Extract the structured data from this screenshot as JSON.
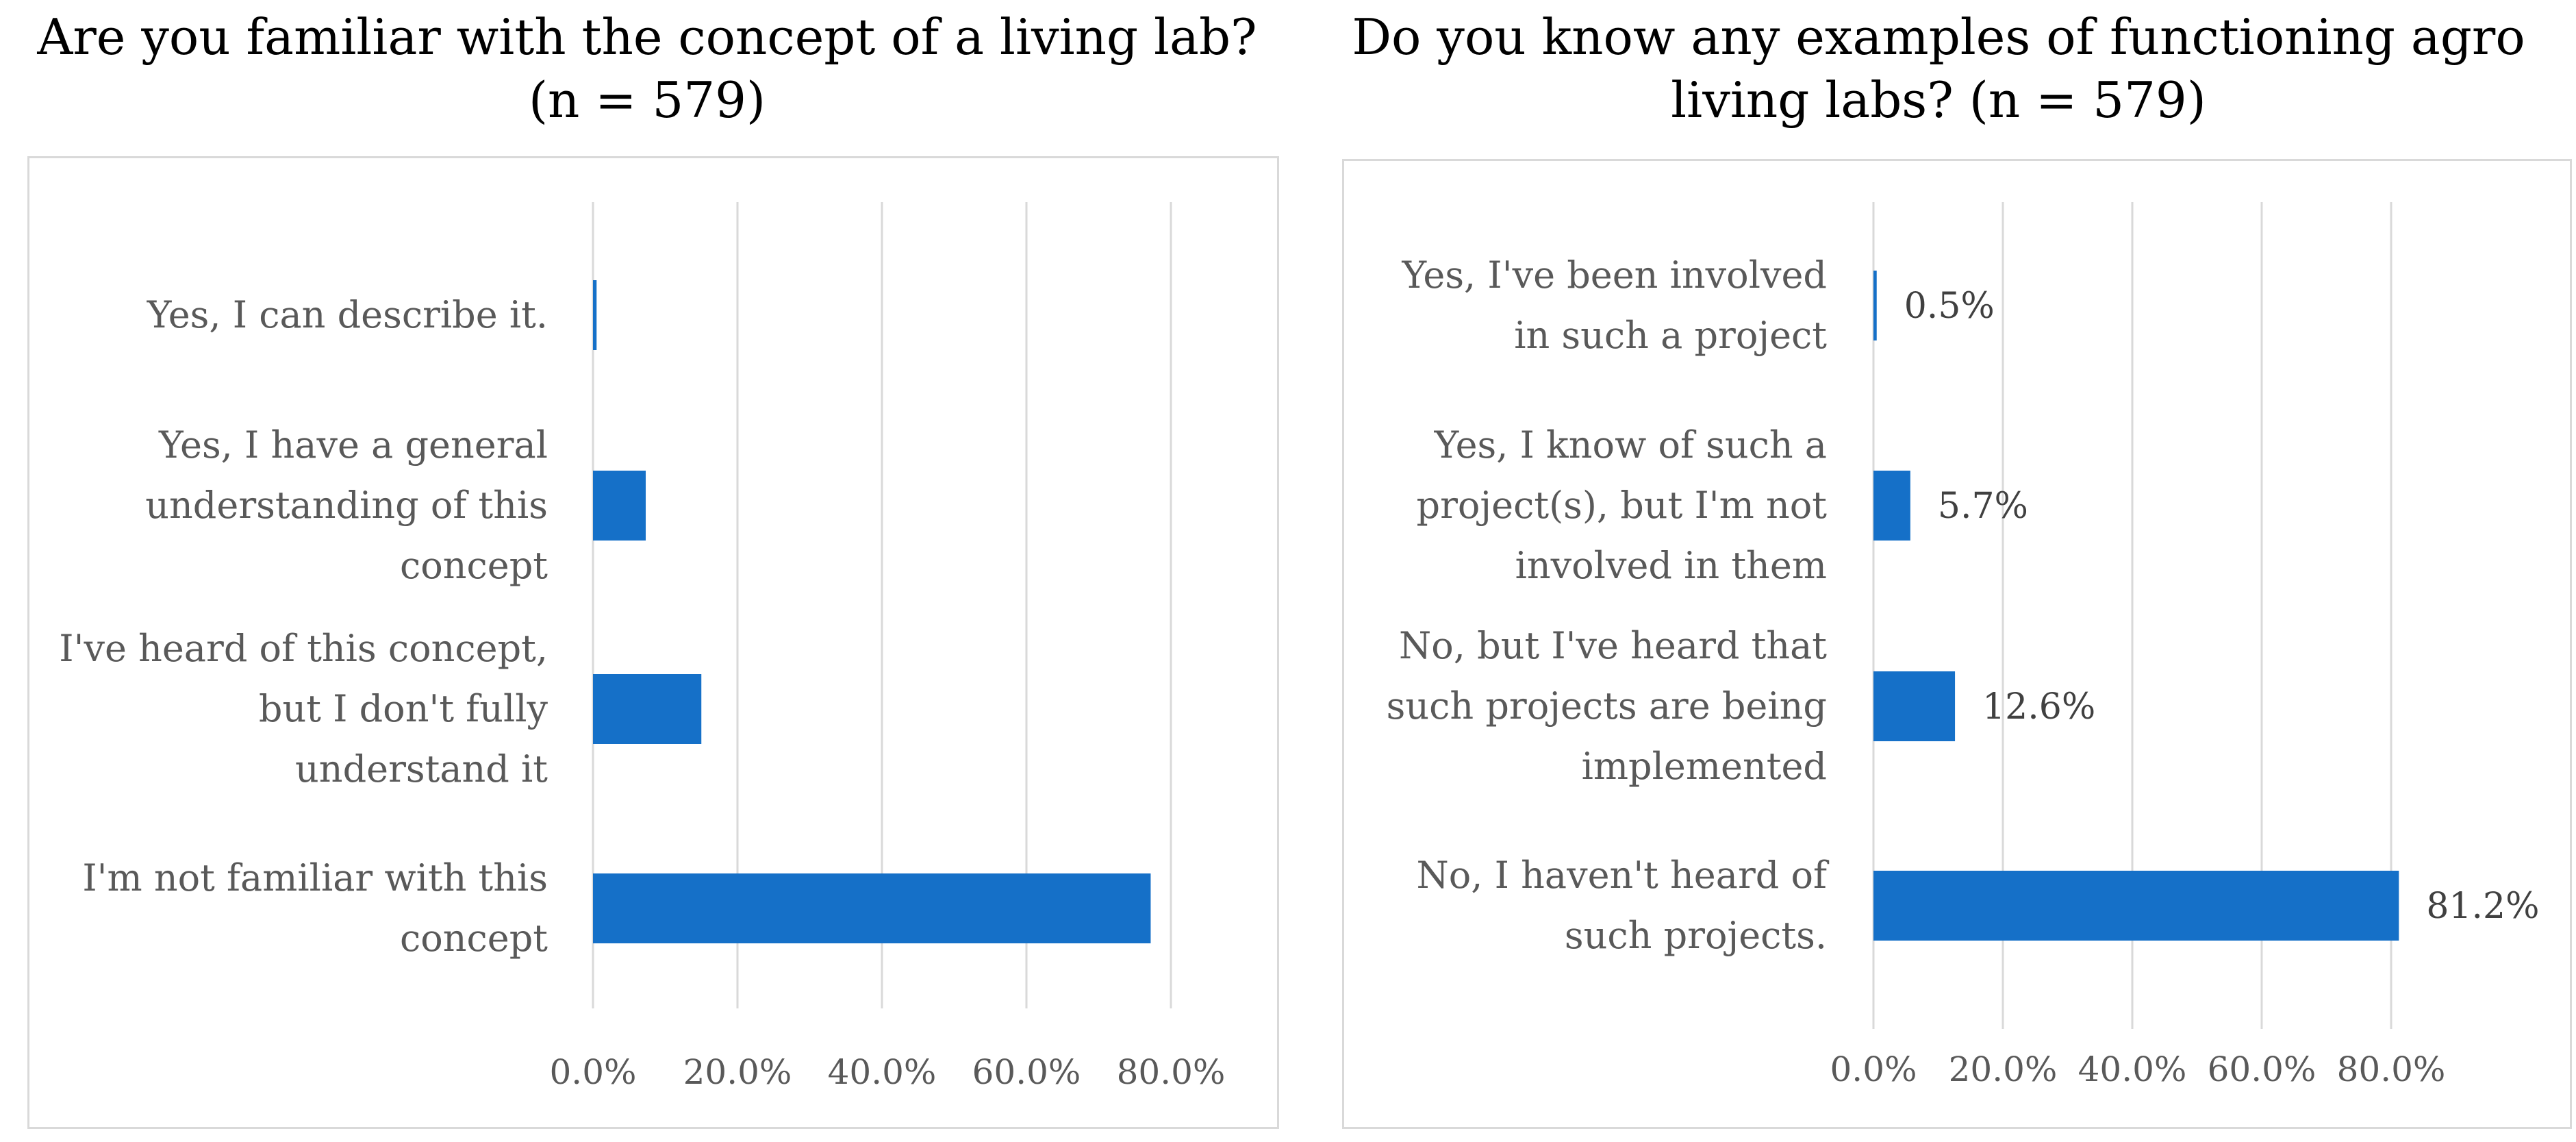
{
  "chart_data": [
    {
      "type": "bar",
      "orientation": "horizontal",
      "title_lines": [
        "Are you familiar with the concept of a living lab?",
        "(n = 579)"
      ],
      "categories": [
        [
          "Yes, I can describe it."
        ],
        [
          "Yes, I have a general",
          "understanding of this",
          "concept"
        ],
        [
          "I've heard of this concept,",
          "but I don't fully",
          "understand it"
        ],
        [
          "I'm not familiar with this",
          "concept"
        ]
      ],
      "values": [
        0.5,
        7.3,
        15.0,
        77.2
      ],
      "xlim": [
        0,
        80
      ],
      "xticks": [
        "0.0%",
        "20.0%",
        "40.0%",
        "60.0%",
        "80.0%"
      ],
      "data_labels": [],
      "gridlines": true,
      "bar_color": "#1570c8"
    },
    {
      "type": "bar",
      "orientation": "horizontal",
      "title_lines": [
        "Do you know any examples of functioning agro",
        "living labs? (n = 579)"
      ],
      "categories": [
        [
          "Yes, I've been involved",
          "in such a project"
        ],
        [
          "Yes, I know of such a",
          "project(s), but I'm not",
          "involved in them"
        ],
        [
          "No, but I've heard that",
          "such projects are being",
          "implemented"
        ],
        [
          "No, I haven't heard of",
          "such projects."
        ]
      ],
      "values": [
        0.5,
        5.7,
        12.6,
        81.2
      ],
      "xlim": [
        0,
        80
      ],
      "xticks": [
        "0.0%",
        "20.0%",
        "40.0%",
        "60.0%",
        "80.0%"
      ],
      "data_labels": [
        "0.5%",
        "5.7%",
        "12.6%",
        "81.2%"
      ],
      "gridlines": true,
      "bar_color": "#1570c8"
    }
  ]
}
